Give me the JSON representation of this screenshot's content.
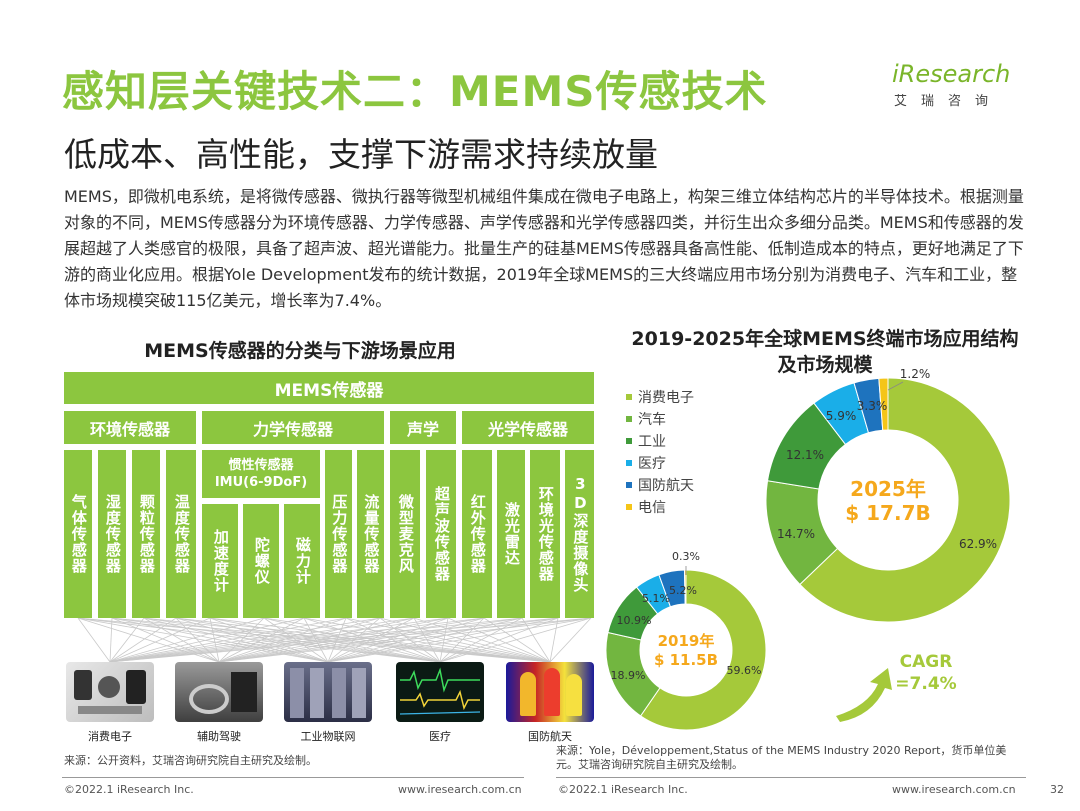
{
  "header": {
    "title": "感知层关键技术二：MEMS传感技术",
    "subtitle": "低成本、高性能，支撑下游需求持续放量",
    "logo_text": "iResearch",
    "logo_cn": "艾瑞咨询"
  },
  "intro": "MEMS，即微机电系统，是将微传感器、微执行器等微型机械组件集成在微电子电路上，构架三维立体结构芯片的半导体技术。根据测量对象的不同，MEMS传感器分为环境传感器、力学传感器、声学传感器和光学传感器四类，并衍生出众多细分品类。MEMS和传感器的发展超越了人类感官的极限，具备了超声波、超光谱能力。批量生产的硅基MEMS传感器具备高性能、低制造成本的特点，更好地满足了下游的商业化应用。根据Yole Development发布的统计数据，2019年全球MEMS的三大终端应用市场分别为消费电子、汽车和工业，整体市场规模突破115亿美元，增长率为7.4%。",
  "diagram": {
    "title": "MEMS传感器的分类与下游场景应用",
    "root": "MEMS传感器",
    "categories": {
      "env": "环境传感器",
      "mech": "力学传感器",
      "acoustic": "声学",
      "optical": "光学传感器"
    },
    "env_items": [
      "气体传感器",
      "湿度传感器",
      "颗粒传感器",
      "温度传感器"
    ],
    "inertial_title": "惯性传感器",
    "inertial_sub": "IMU(6-9DoF)",
    "inertial_items": [
      "加速度计",
      "陀螺仪",
      "磁力计"
    ],
    "mech_items": [
      "压力传感器",
      "流量传感器"
    ],
    "acoustic_items": [
      "微型麦克风",
      "超声波传感器"
    ],
    "optical_items": [
      "红外传感器",
      "激光雷达",
      "环境光传感器",
      "3D深度摄像头"
    ],
    "applications": [
      "消费电子",
      "辅助驾驶",
      "工业物联网",
      "医疗",
      "国防航天"
    ]
  },
  "chart_data": {
    "type": "pie",
    "title": "2019-2025年全球MEMS终端市场应用结构及市场规模",
    "categories": [
      "消费电子",
      "汽车",
      "工业",
      "医疗",
      "国防航天",
      "电信"
    ],
    "colors": [
      "#a5c93a",
      "#72b640",
      "#3f9a3a",
      "#1aaee8",
      "#1e73be",
      "#f5c518"
    ],
    "series": [
      {
        "name": "2019年",
        "total_label": "$ 11.5B",
        "values": [
          59.6,
          18.9,
          10.9,
          5.1,
          5.2,
          0.3
        ],
        "labels": [
          "59.6%",
          "18.9%",
          "10.9%",
          "5.1%",
          "5.2%",
          "0.3%"
        ]
      },
      {
        "name": "2025年",
        "total_label": "$ 17.7B",
        "values": [
          62.9,
          14.7,
          12.1,
          5.9,
          3.3,
          1.2
        ],
        "labels": [
          "62.9%",
          "14.7%",
          "12.1%",
          "5.9%",
          "3.3%",
          "1.2%"
        ]
      }
    ],
    "cagr_label": "CAGR",
    "cagr_value": "=7.4%",
    "legend_position": "top-left"
  },
  "sources": {
    "left": "来源：公开资料，艾瑞咨询研究院自主研究及绘制。",
    "right": "来源：Yole，Développement,Status of the MEMS Industry 2020 Report，货币单位美元。艾瑞咨询研究院自主研究及绘制。"
  },
  "footer": {
    "left_copyright": "©2022.1 iResearch Inc.",
    "left_url": "www.iresearch.com.cn",
    "right_copyright": "©2022.1 iResearch Inc.",
    "right_url": "www.iresearch.com.cn",
    "page": "32"
  }
}
